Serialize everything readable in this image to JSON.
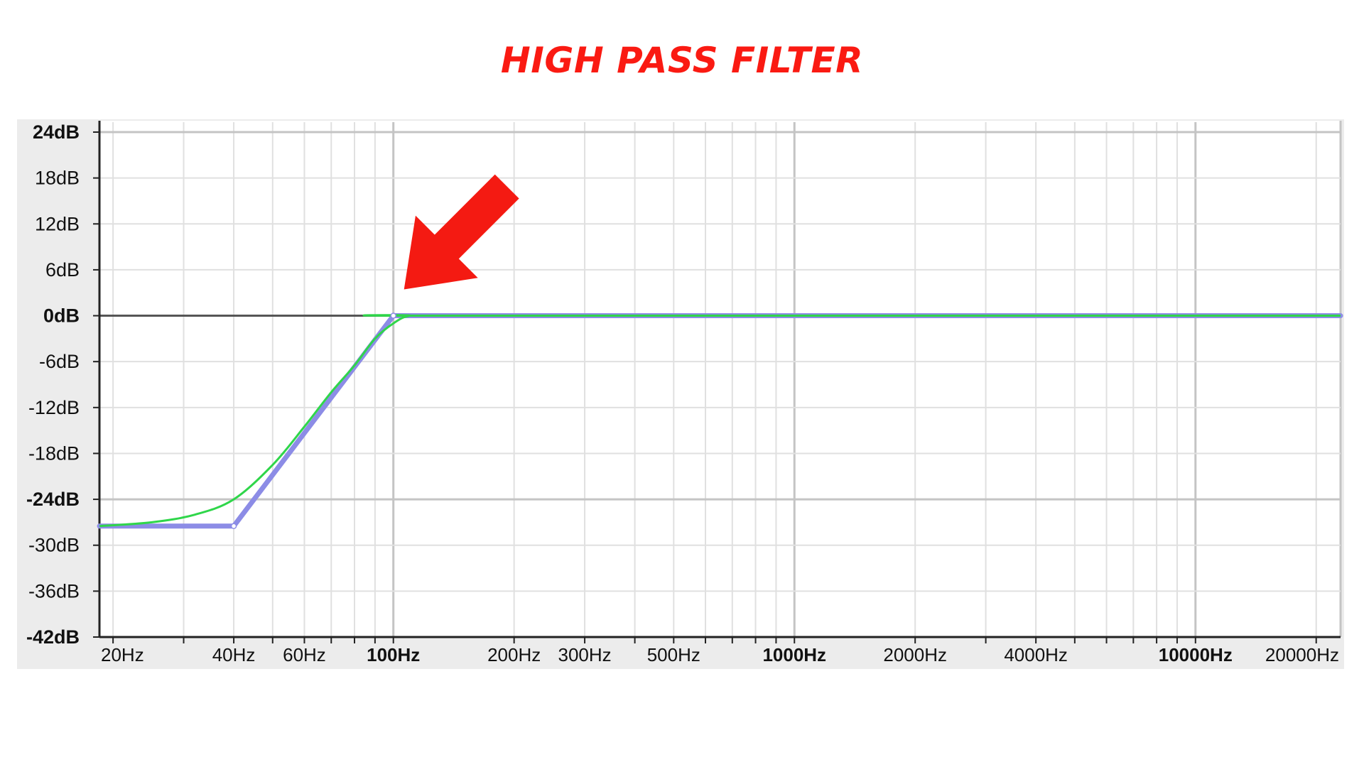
{
  "title": "HIGH PASS FILTER",
  "colors": {
    "title": "#fa1a12",
    "panel": "#ececec",
    "plot_bg": "#ffffff",
    "grid_minor": "#e0e0e0",
    "grid_major": "#c4c4c4",
    "zero_line": "#555555",
    "curve_handles": "#8c8ce6",
    "curve_response": "#2fd64a",
    "arrow": "#f41a12"
  },
  "chart_data": {
    "type": "line",
    "title": "HIGH PASS FILTER",
    "xlabel": "",
    "ylabel": "",
    "x_scale": "log",
    "xlim": [
      18.5,
      23000
    ],
    "ylim": [
      -42,
      24
    ],
    "grid": true,
    "y_ticks": [
      {
        "value": 24,
        "label": "24dB",
        "bold": true
      },
      {
        "value": 18,
        "label": "18dB",
        "bold": false
      },
      {
        "value": 12,
        "label": "12dB",
        "bold": false
      },
      {
        "value": 6,
        "label": "6dB",
        "bold": false
      },
      {
        "value": 0,
        "label": "0dB",
        "bold": true
      },
      {
        "value": -6,
        "label": "-6dB",
        "bold": false
      },
      {
        "value": -12,
        "label": "-12dB",
        "bold": false
      },
      {
        "value": -18,
        "label": "-18dB",
        "bold": false
      },
      {
        "value": -24,
        "label": "-24dB",
        "bold": true
      },
      {
        "value": -30,
        "label": "-30dB",
        "bold": false
      },
      {
        "value": -36,
        "label": "-36dB",
        "bold": false
      },
      {
        "value": -42,
        "label": "-42dB",
        "bold": true
      }
    ],
    "x_ticks": [
      {
        "value": 20,
        "label": "20Hz",
        "bold": false
      },
      {
        "value": 40,
        "label": "40Hz",
        "bold": false
      },
      {
        "value": 60,
        "label": "60Hz",
        "bold": false
      },
      {
        "value": 100,
        "label": "100Hz",
        "bold": true
      },
      {
        "value": 200,
        "label": "200Hz",
        "bold": false
      },
      {
        "value": 300,
        "label": "300Hz",
        "bold": false
      },
      {
        "value": 500,
        "label": "500Hz",
        "bold": false
      },
      {
        "value": 1000,
        "label": "1000Hz",
        "bold": true
      },
      {
        "value": 2000,
        "label": "2000Hz",
        "bold": false
      },
      {
        "value": 4000,
        "label": "4000Hz",
        "bold": false
      },
      {
        "value": 10000,
        "label": "10000Hz",
        "bold": true
      },
      {
        "value": 20000,
        "label": "20000Hz",
        "bold": false
      }
    ],
    "series": [
      {
        "id": "handles",
        "x": [
          18.5,
          40,
          100,
          23000
        ],
        "y": [
          -27.5,
          -27.5,
          0,
          0
        ],
        "points": [
          [
            40,
            -27.5
          ],
          [
            100,
            0
          ]
        ]
      },
      {
        "id": "response",
        "x": [
          18.5,
          25,
          32,
          40,
          50,
          60,
          70,
          80,
          90,
          100,
          110,
          130,
          23000
        ],
        "y": [
          -27.5,
          -27,
          -26,
          -24,
          -19.5,
          -14.5,
          -10,
          -6.5,
          -3,
          -1,
          0,
          0,
          0
        ]
      }
    ]
  },
  "annotation": {
    "type": "arrow",
    "points_to_x": 100,
    "points_to_y": 0
  }
}
